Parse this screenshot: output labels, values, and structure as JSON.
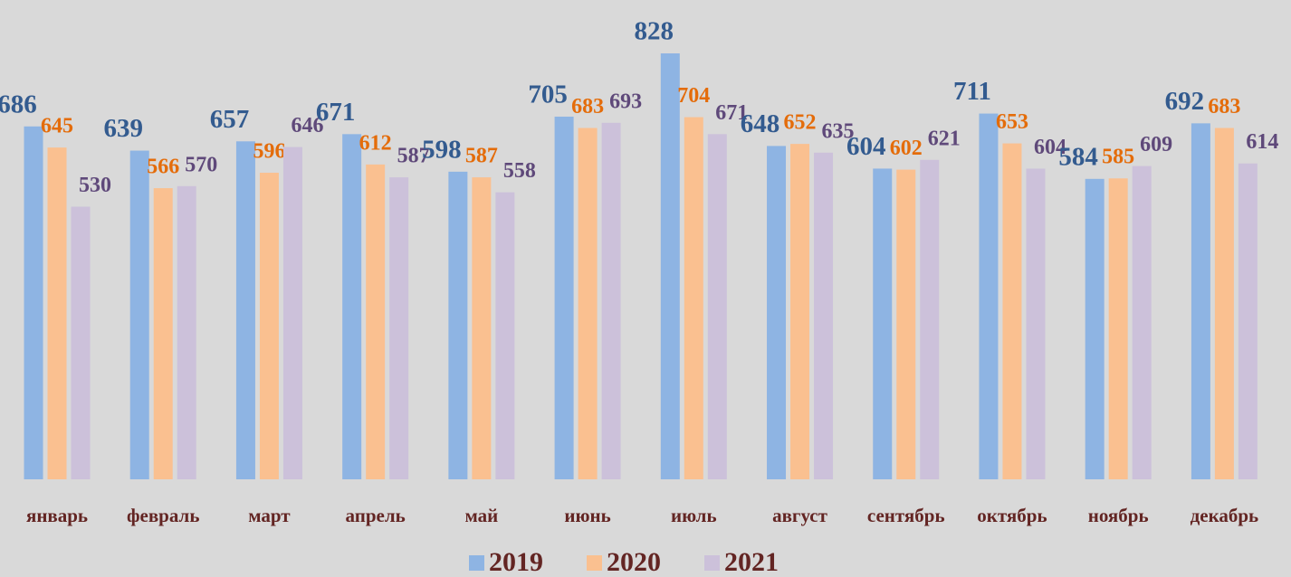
{
  "chart_data": {
    "type": "bar",
    "categories": [
      "январь",
      "февраль",
      "март",
      "апрель",
      "май",
      "июнь",
      "июль",
      "август",
      "сентябрь",
      "октябрь",
      "ноябрь",
      "декабрь"
    ],
    "series": [
      {
        "name": "2019",
        "color": "#8eb4e3",
        "label_color": "#335b8f",
        "values": [
          686,
          639,
          657,
          671,
          598,
          705,
          828,
          648,
          604,
          711,
          584,
          692
        ]
      },
      {
        "name": "2020",
        "color": "#fac090",
        "label_color": "#e46c0a",
        "values": [
          645,
          566,
          596,
          612,
          587,
          683,
          704,
          652,
          602,
          653,
          585,
          683
        ]
      },
      {
        "name": "2021",
        "color": "#ccc1da",
        "label_color": "#5f497a",
        "values": [
          530,
          570,
          646,
          587,
          558,
          693,
          671,
          635,
          621,
          604,
          609,
          614
        ]
      }
    ],
    "ylim": [
      0,
      930
    ],
    "legend": "bottom"
  }
}
